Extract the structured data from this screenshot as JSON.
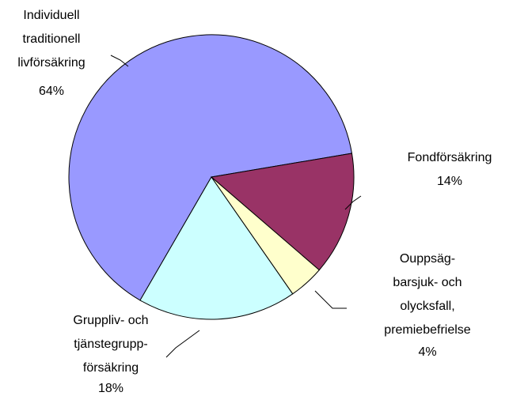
{
  "chart_data": {
    "type": "pie",
    "categories": [
      [
        "Individuell",
        "traditionell",
        "livförsäkring"
      ],
      [
        "Fondförsäkring"
      ],
      [
        "Ouppsäg-",
        "barsjuk- och",
        "olycksfall,",
        "premiebefrielse"
      ],
      [
        "Gruppliv- och",
        "tjänstegrupp-",
        "försäkring"
      ]
    ],
    "values": [
      64,
      14,
      4,
      18
    ],
    "value_labels": [
      "64%",
      "14%",
      "4%",
      "18%"
    ],
    "colors": [
      "#9999ff",
      "#993366",
      "#ffffcc",
      "#ccffff"
    ]
  }
}
